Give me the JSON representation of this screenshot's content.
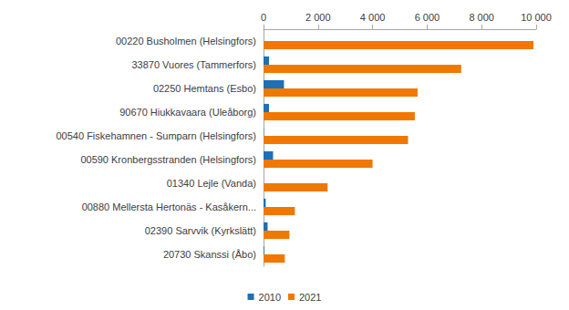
{
  "chart_data": {
    "type": "bar",
    "orientation": "horizontal",
    "categories": [
      "00220 Busholmen (Helsingfors)",
      "33870 Vuores (Tammerfors)",
      "02250 Hemtans (Esbo)",
      "90670 Hiukkavaara (Uleåborg)",
      "00540 Fiskehamnen - Sumparn (Helsingfors)",
      "00590 Kronbergsstranden (Helsingfors)",
      "01340 Lejle (Vanda)",
      "00880 Mellersta Hertonäs - Kasåkern...",
      "02390 Sarvvik (Kyrkslätt)",
      "20730 Skanssi (Åbo)"
    ],
    "series": [
      {
        "name": "2010",
        "color": "#1f6fb5",
        "values": [
          0,
          200,
          750,
          200,
          10,
          350,
          0,
          80,
          150,
          30
        ]
      },
      {
        "name": "2021",
        "color": "#f07800",
        "values": [
          9900,
          7250,
          5650,
          5550,
          5300,
          4000,
          2350,
          1150,
          950,
          780
        ]
      }
    ],
    "xlim": [
      0,
      10000
    ],
    "xticks": [
      0,
      {
        "value": 2000,
        "label": "2 000"
      },
      {
        "value": 4000,
        "label": "4 000"
      },
      {
        "value": 6000,
        "label": "6 000"
      },
      {
        "value": 8000,
        "label": "8 000"
      },
      {
        "value": 10000,
        "label": "10 000"
      }
    ],
    "grid": false,
    "legend": "bottom"
  }
}
